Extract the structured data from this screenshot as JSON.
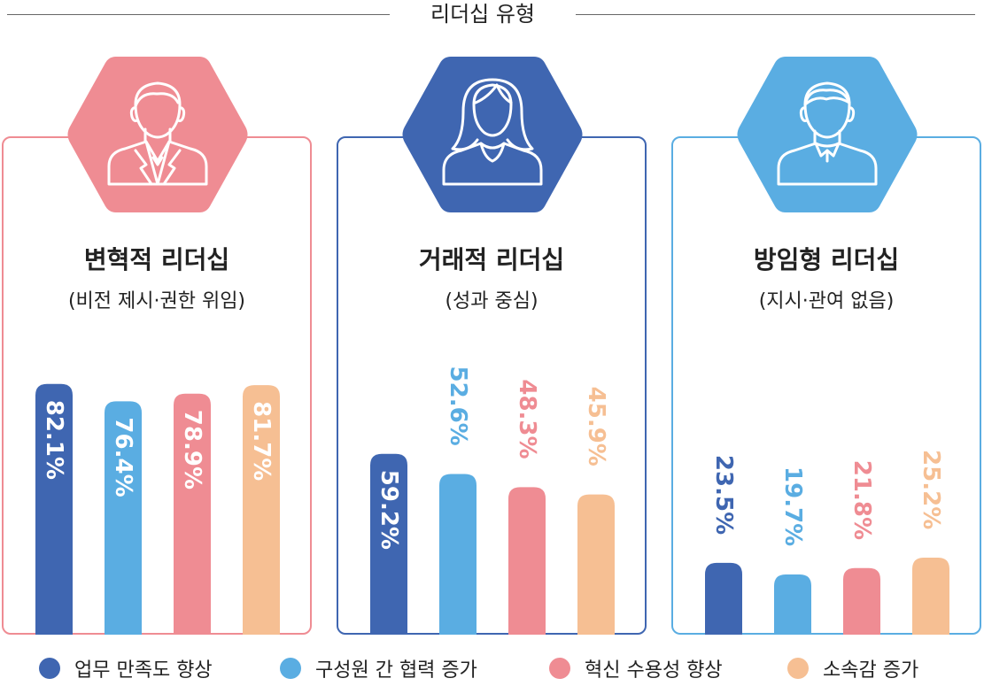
{
  "header": {
    "title": "리더십 유형"
  },
  "colors": {
    "navy": "#3f66b1",
    "sky": "#5aade2",
    "pink": "#ef8c93",
    "peach": "#f6bf93",
    "panel_border": [
      "#ef8c93",
      "#3f66b1",
      "#5aade2"
    ]
  },
  "panels": [
    {
      "title": "변혁적 리더십",
      "subtitle": "(비전 제시·권한 위임)",
      "icon": "man-in-suit-icon",
      "hex_color": "#ef8c93"
    },
    {
      "title": "거래적 리더십",
      "subtitle": "(성과 중심)",
      "icon": "woman-icon",
      "hex_color": "#3f66b1"
    },
    {
      "title": "방임형 리더십",
      "subtitle": "(지시·관여 없음)",
      "icon": "man-casual-icon",
      "hex_color": "#5aade2"
    }
  ],
  "legend": [
    {
      "label": "업무 만족도 향상",
      "color": "#3f66b1"
    },
    {
      "label": "구성원 간 협력 증가",
      "color": "#5aade2"
    },
    {
      "label": "혁신 수용성 향상",
      "color": "#ef8c93"
    },
    {
      "label": "소속감 증가",
      "color": "#f6bf93"
    }
  ],
  "chart_data": [
    {
      "type": "bar",
      "title": "변혁적 리더십",
      "subtitle": "(비전 제시·권한 위임)",
      "categories": [
        "업무 만족도 향상",
        "구성원 간 협력 증가",
        "혁신 수용성 향상",
        "소속감 증가"
      ],
      "values": [
        82.1,
        76.4,
        78.9,
        81.7
      ],
      "labels": [
        "82.1%",
        "76.4%",
        "78.9%",
        "81.7%"
      ],
      "unit": "%",
      "ylim": [
        0,
        100
      ]
    },
    {
      "type": "bar",
      "title": "거래적 리더십",
      "subtitle": "(성과 중심)",
      "categories": [
        "업무 만족도 향상",
        "구성원 간 협력 증가",
        "혁신 수용성 향상",
        "소속감 증가"
      ],
      "values": [
        59.2,
        52.6,
        48.3,
        45.9
      ],
      "labels": [
        "59.2%",
        "52.6%",
        "48.3%",
        "45.9%"
      ],
      "unit": "%",
      "ylim": [
        0,
        100
      ]
    },
    {
      "type": "bar",
      "title": "방임형 리더십",
      "subtitle": "(지시·관여 없음)",
      "categories": [
        "업무 만족도 향상",
        "구성원 간 협력 증가",
        "혁신 수용성 향상",
        "소속감 증가"
      ],
      "values": [
        23.5,
        19.7,
        21.8,
        25.2
      ],
      "labels": [
        "23.5%",
        "19.7%",
        "21.8%",
        "25.2%"
      ],
      "unit": "%",
      "ylim": [
        0,
        100
      ]
    }
  ]
}
